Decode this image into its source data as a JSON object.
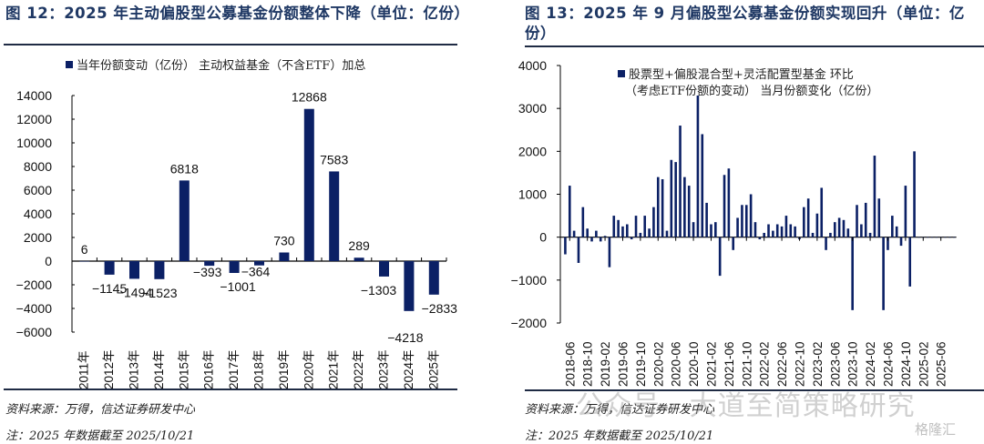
{
  "left": {
    "title": "图 12：2025 年主动偏股型公募基金份额整体下降（单位：亿份）",
    "source": "资料来源：万得，信达证券研发中心",
    "note": "注：2025 年数据截至 2025/10/21"
  },
  "right": {
    "title": "图 13：2025 年 9 月偏股型公募基金份额实现回升（单位：亿份）",
    "source": "资料来源：万得，信达证券研发中心",
    "note": "注：2025 年数据截至 2025/10/21",
    "watermark": "公众号 · 大道至简策略研究",
    "logo": "格隆汇"
  },
  "colors": {
    "bar": "#0b2065",
    "title": "#1f3864"
  },
  "chart_data": [
    {
      "type": "bar",
      "title": "",
      "legend": [
        "当年份额变动（亿份） 主动权益基金（不含ETF）加总"
      ],
      "legend_position": "top",
      "categories": [
        "2011年",
        "2012年",
        "2013年",
        "2014年",
        "2015年",
        "2016年",
        "2017年",
        "2018年",
        "2019年",
        "2020年",
        "2021年",
        "2022年",
        "2023年",
        "2024年",
        "2025年"
      ],
      "values": [
        6,
        -1145,
        -1494,
        -1523,
        6818,
        -393,
        -1001,
        -364,
        730,
        12868,
        7583,
        289,
        -1303,
        -4218,
        -2833
      ],
      "data_labels": [
        "6",
        "−1145",
        "−1494",
        "−1523",
        "6818",
        "−393",
        "−1001",
        "−364",
        "730",
        "12868",
        "7583",
        "289",
        "−1303",
        "−4218",
        "−2833"
      ],
      "yticks": [
        "14000",
        "12000",
        "10000",
        "8000",
        "6000",
        "4000",
        "2000",
        "0",
        "−2000",
        "−4000",
        "−6000"
      ],
      "ylim": [
        -6000,
        14000
      ],
      "xlabel": "",
      "ylabel": "",
      "grid": false
    },
    {
      "type": "bar",
      "title": "",
      "legend": [
        "股票型+偏股混合型+灵活配置型基金 环比",
        "（考虑ETF份额的变动） 当月份额变化（亿份）"
      ],
      "legend_position": "top-left",
      "x_start": "2018-05",
      "xticks": [
        "2018-06",
        "2018-10",
        "2019-02",
        "2019-06",
        "2019-10",
        "2020-02",
        "2020-06",
        "2020-10",
        "2021-02",
        "2021-06",
        "2021-10",
        "2022-02",
        "2022-06",
        "2022-10",
        "2023-02",
        "2023-06",
        "2023-10",
        "2024-02",
        "2024-06",
        "2024-10",
        "2025-02",
        "2025-06"
      ],
      "values": [
        -400,
        1200,
        150,
        -600,
        700,
        200,
        -100,
        150,
        -100,
        30,
        -700,
        500,
        400,
        250,
        300,
        -50,
        500,
        100,
        500,
        200,
        700,
        1400,
        1350,
        150,
        1800,
        1750,
        2600,
        1400,
        1200,
        350,
        3300,
        2400,
        800,
        300,
        350,
        -900,
        1450,
        1600,
        -300,
        450,
        750,
        750,
        1000,
        350,
        -50,
        100,
        300,
        150,
        300,
        250,
        500,
        300,
        250,
        -50,
        700,
        900,
        100,
        550,
        1150,
        -300,
        100,
        350,
        450,
        400,
        200,
        -1700,
        750,
        300,
        800,
        100,
        1900,
        900,
        -1700,
        -300,
        500,
        250,
        -200,
        1200,
        -1150,
        2000,
        0,
        0,
        0,
        0,
        0,
        0,
        0,
        0,
        0
      ],
      "yticks": [
        "4000",
        "3000",
        "2000",
        "1000",
        "0",
        "−1000",
        "−2000"
      ],
      "ylim": [
        -2000,
        4000
      ],
      "xlabel": "",
      "ylabel": "",
      "grid": false
    }
  ]
}
